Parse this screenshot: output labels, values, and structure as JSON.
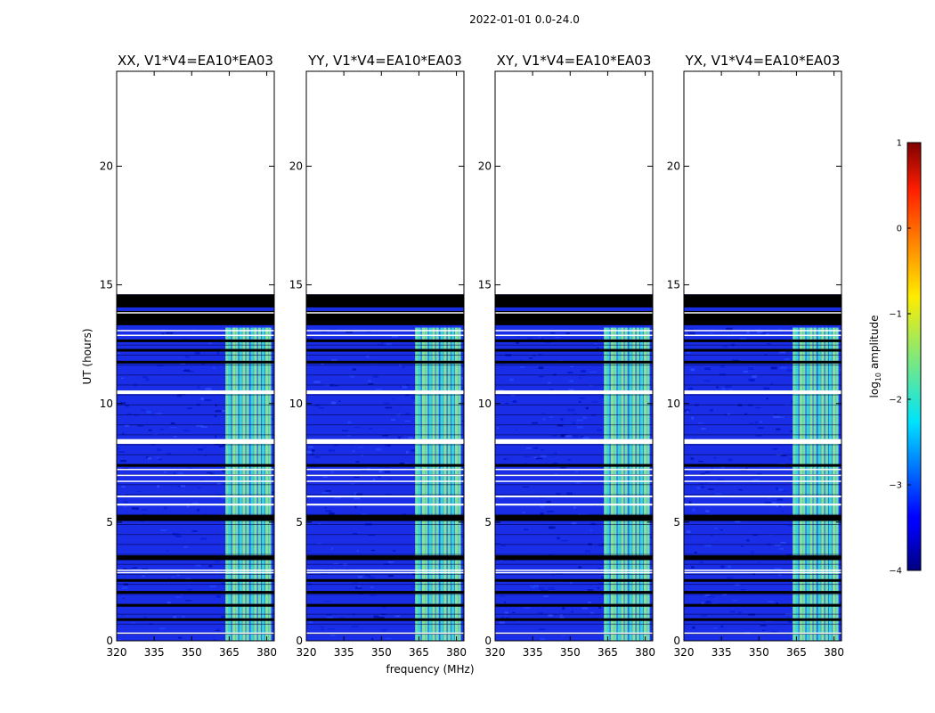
{
  "chart_data": {
    "type": "heatmap",
    "suptitle": "2022-01-01 0.0-24.0",
    "xlabel": "frequency (MHz)",
    "ylabel": "UT (hours)",
    "xlim": [
      320,
      383
    ],
    "ylim": [
      0,
      24
    ],
    "xticks": [
      320,
      335,
      350,
      365,
      380
    ],
    "yticks": [
      0,
      5,
      10,
      15,
      20
    ],
    "panels": [
      {
        "title": "XX, V1*V4=EA10*EA03"
      },
      {
        "title": "YY, V1*V4=EA10*EA03"
      },
      {
        "title": "XY, V1*V4=EA10*EA03"
      },
      {
        "title": "YX, V1*V4=EA10*EA03"
      }
    ],
    "data_extent_hours": [
      0,
      14.6
    ],
    "flagged_black_bands_hours": [
      [
        13.3,
        13.9
      ],
      [
        14.05,
        14.6
      ],
      [
        5.05,
        5.3
      ],
      [
        3.4,
        3.6
      ]
    ],
    "white_gap_bands_hours": [
      [
        10.4,
        10.55
      ],
      [
        8.3,
        8.5
      ],
      [
        6.05,
        6.12
      ],
      [
        5.7,
        5.78
      ]
    ],
    "rfi_band_mhz": [
      363.5,
      382
    ],
    "colorbar": {
      "label": "log10 amplitude",
      "range": [
        -4,
        1
      ],
      "ticks": [
        1,
        0,
        -1,
        -2,
        -3,
        -4
      ],
      "tick_labels": [
        "1",
        "0",
        "−1",
        "−2",
        "−3",
        "−4"
      ],
      "colormap": "jet"
    }
  }
}
